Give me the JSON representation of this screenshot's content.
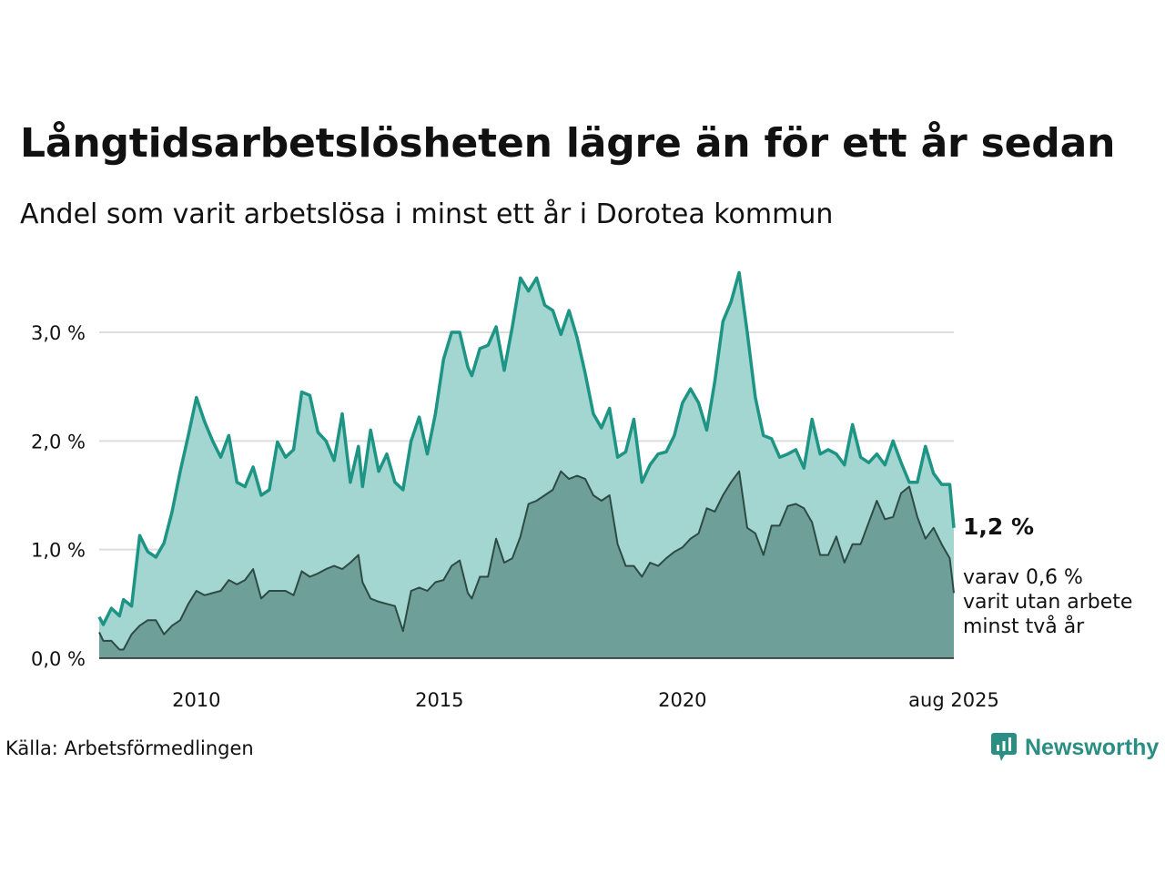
{
  "title": "Långtidsarbetslösheten lägre än för ett år sedan",
  "subtitle": "Andel som varit arbetslösa i minst ett år i Dorotea kommun",
  "source": "Källa: Arbetsförmedlingen",
  "brand": "Newsworthy",
  "colors": {
    "total_line": "#1e9485",
    "total_fill": "#a3d6d0",
    "sub_line": "#2e4a44",
    "sub_fill": "#6f9f99",
    "grid": "#dddddd"
  },
  "chart_data": {
    "type": "area",
    "title": "Långtidsarbetslösheten lägre än för ett år sedan",
    "subtitle": "Andel som varit arbetslösa i minst ett år i Dorotea kommun",
    "x_ticks": [
      "2010",
      "2015",
      "2020",
      "aug 2025"
    ],
    "y_ticks": [
      "0,0 %",
      "1,0 %",
      "2,0 %",
      "3,0 %"
    ],
    "ylim": [
      0,
      3.6
    ],
    "grid": true,
    "series": [
      {
        "end_label": "1,2 %",
        "points": [
          [
            "2008-01",
            0.38
          ],
          [
            "2008-02",
            0.31
          ],
          [
            "2008-04",
            0.46
          ],
          [
            "2008-06",
            0.39
          ],
          [
            "2008-07",
            0.54
          ],
          [
            "2008-09",
            0.48
          ],
          [
            "2008-11",
            1.13
          ],
          [
            "2009-01",
            0.98
          ],
          [
            "2009-03",
            0.93
          ],
          [
            "2009-05",
            1.06
          ],
          [
            "2009-07",
            1.35
          ],
          [
            "2009-09",
            1.72
          ],
          [
            "2009-11",
            2.05
          ],
          [
            "2010-01",
            2.4
          ],
          [
            "2010-03",
            2.18
          ],
          [
            "2010-05",
            2.0
          ],
          [
            "2010-07",
            1.85
          ],
          [
            "2010-09",
            2.05
          ],
          [
            "2010-11",
            1.62
          ],
          [
            "2011-01",
            1.58
          ],
          [
            "2011-03",
            1.76
          ],
          [
            "2011-05",
            1.5
          ],
          [
            "2011-07",
            1.55
          ],
          [
            "2011-09",
            1.99
          ],
          [
            "2011-11",
            1.85
          ],
          [
            "2012-01",
            1.92
          ],
          [
            "2012-03",
            2.45
          ],
          [
            "2012-05",
            2.42
          ],
          [
            "2012-07",
            2.08
          ],
          [
            "2012-09",
            2.0
          ],
          [
            "2012-11",
            1.82
          ],
          [
            "2013-01",
            2.25
          ],
          [
            "2013-03",
            1.62
          ],
          [
            "2013-05",
            1.95
          ],
          [
            "2013-06",
            1.58
          ],
          [
            "2013-08",
            2.1
          ],
          [
            "2013-10",
            1.72
          ],
          [
            "2013-12",
            1.88
          ],
          [
            "2014-02",
            1.62
          ],
          [
            "2014-04",
            1.55
          ],
          [
            "2014-06",
            2.0
          ],
          [
            "2014-08",
            2.22
          ],
          [
            "2014-10",
            1.88
          ],
          [
            "2014-12",
            2.25
          ],
          [
            "2015-02",
            2.75
          ],
          [
            "2015-04",
            3.0
          ],
          [
            "2015-06",
            3.0
          ],
          [
            "2015-08",
            2.68
          ],
          [
            "2015-09",
            2.6
          ],
          [
            "2015-11",
            2.85
          ],
          [
            "2016-01",
            2.88
          ],
          [
            "2016-03",
            3.05
          ],
          [
            "2016-05",
            2.65
          ],
          [
            "2016-07",
            3.05
          ],
          [
            "2016-09",
            3.5
          ],
          [
            "2016-11",
            3.38
          ],
          [
            "2017-01",
            3.5
          ],
          [
            "2017-03",
            3.25
          ],
          [
            "2017-05",
            3.2
          ],
          [
            "2017-07",
            2.98
          ],
          [
            "2017-09",
            3.2
          ],
          [
            "2017-11",
            2.95
          ],
          [
            "2018-01",
            2.62
          ],
          [
            "2018-03",
            2.25
          ],
          [
            "2018-05",
            2.12
          ],
          [
            "2018-07",
            2.3
          ],
          [
            "2018-09",
            1.85
          ],
          [
            "2018-11",
            1.9
          ],
          [
            "2019-01",
            2.2
          ],
          [
            "2019-03",
            1.62
          ],
          [
            "2019-05",
            1.78
          ],
          [
            "2019-07",
            1.88
          ],
          [
            "2019-09",
            1.9
          ],
          [
            "2019-11",
            2.05
          ],
          [
            "2020-01",
            2.35
          ],
          [
            "2020-03",
            2.48
          ],
          [
            "2020-05",
            2.35
          ],
          [
            "2020-07",
            2.1
          ],
          [
            "2020-09",
            2.55
          ],
          [
            "2020-11",
            3.1
          ],
          [
            "2021-01",
            3.28
          ],
          [
            "2021-03",
            3.55
          ],
          [
            "2021-05",
            3.0
          ],
          [
            "2021-07",
            2.4
          ],
          [
            "2021-09",
            2.05
          ],
          [
            "2021-11",
            2.02
          ],
          [
            "2022-01",
            1.85
          ],
          [
            "2022-03",
            1.88
          ],
          [
            "2022-05",
            1.92
          ],
          [
            "2022-07",
            1.75
          ],
          [
            "2022-09",
            2.2
          ],
          [
            "2022-11",
            1.88
          ],
          [
            "2023-01",
            1.92
          ],
          [
            "2023-03",
            1.88
          ],
          [
            "2023-05",
            1.78
          ],
          [
            "2023-07",
            2.15
          ],
          [
            "2023-09",
            1.85
          ],
          [
            "2023-11",
            1.8
          ],
          [
            "2024-01",
            1.88
          ],
          [
            "2024-03",
            1.78
          ],
          [
            "2024-05",
            2.0
          ],
          [
            "2024-07",
            1.8
          ],
          [
            "2024-09",
            1.62
          ],
          [
            "2024-11",
            1.62
          ],
          [
            "2025-01",
            1.95
          ],
          [
            "2025-03",
            1.7
          ],
          [
            "2025-05",
            1.6
          ],
          [
            "2025-07",
            1.6
          ],
          [
            "2025-08",
            1.2
          ]
        ]
      },
      {
        "end_label": [
          "varav 0,6 %",
          "varit utan arbete",
          "minst två år"
        ],
        "points": [
          [
            "2008-01",
            0.24
          ],
          [
            "2008-02",
            0.16
          ],
          [
            "2008-04",
            0.16
          ],
          [
            "2008-06",
            0.08
          ],
          [
            "2008-07",
            0.08
          ],
          [
            "2008-09",
            0.22
          ],
          [
            "2008-11",
            0.3
          ],
          [
            "2009-01",
            0.35
          ],
          [
            "2009-03",
            0.35
          ],
          [
            "2009-05",
            0.22
          ],
          [
            "2009-07",
            0.3
          ],
          [
            "2009-09",
            0.35
          ],
          [
            "2009-11",
            0.5
          ],
          [
            "2010-01",
            0.62
          ],
          [
            "2010-03",
            0.58
          ],
          [
            "2010-05",
            0.6
          ],
          [
            "2010-07",
            0.62
          ],
          [
            "2010-09",
            0.72
          ],
          [
            "2010-11",
            0.68
          ],
          [
            "2011-01",
            0.72
          ],
          [
            "2011-03",
            0.82
          ],
          [
            "2011-05",
            0.55
          ],
          [
            "2011-07",
            0.62
          ],
          [
            "2011-09",
            0.62
          ],
          [
            "2011-11",
            0.62
          ],
          [
            "2012-01",
            0.58
          ],
          [
            "2012-03",
            0.8
          ],
          [
            "2012-05",
            0.75
          ],
          [
            "2012-07",
            0.78
          ],
          [
            "2012-09",
            0.82
          ],
          [
            "2012-11",
            0.85
          ],
          [
            "2013-01",
            0.82
          ],
          [
            "2013-03",
            0.88
          ],
          [
            "2013-05",
            0.95
          ],
          [
            "2013-06",
            0.7
          ],
          [
            "2013-08",
            0.55
          ],
          [
            "2013-10",
            0.52
          ],
          [
            "2013-12",
            0.5
          ],
          [
            "2014-02",
            0.48
          ],
          [
            "2014-04",
            0.25
          ],
          [
            "2014-06",
            0.62
          ],
          [
            "2014-08",
            0.65
          ],
          [
            "2014-10",
            0.62
          ],
          [
            "2014-12",
            0.7
          ],
          [
            "2015-02",
            0.72
          ],
          [
            "2015-04",
            0.85
          ],
          [
            "2015-06",
            0.9
          ],
          [
            "2015-08",
            0.6
          ],
          [
            "2015-09",
            0.55
          ],
          [
            "2015-11",
            0.75
          ],
          [
            "2016-01",
            0.75
          ],
          [
            "2016-03",
            1.1
          ],
          [
            "2016-05",
            0.88
          ],
          [
            "2016-07",
            0.92
          ],
          [
            "2016-09",
            1.12
          ],
          [
            "2016-11",
            1.42
          ],
          [
            "2017-01",
            1.45
          ],
          [
            "2017-03",
            1.5
          ],
          [
            "2017-05",
            1.55
          ],
          [
            "2017-07",
            1.72
          ],
          [
            "2017-09",
            1.65
          ],
          [
            "2017-11",
            1.68
          ],
          [
            "2018-01",
            1.65
          ],
          [
            "2018-03",
            1.5
          ],
          [
            "2018-05",
            1.45
          ],
          [
            "2018-07",
            1.5
          ],
          [
            "2018-09",
            1.05
          ],
          [
            "2018-11",
            0.85
          ],
          [
            "2019-01",
            0.85
          ],
          [
            "2019-03",
            0.75
          ],
          [
            "2019-05",
            0.88
          ],
          [
            "2019-07",
            0.85
          ],
          [
            "2019-09",
            0.92
          ],
          [
            "2019-11",
            0.98
          ],
          [
            "2020-01",
            1.02
          ],
          [
            "2020-03",
            1.1
          ],
          [
            "2020-05",
            1.15
          ],
          [
            "2020-07",
            1.38
          ],
          [
            "2020-09",
            1.35
          ],
          [
            "2020-11",
            1.5
          ],
          [
            "2021-01",
            1.62
          ],
          [
            "2021-03",
            1.72
          ],
          [
            "2021-05",
            1.2
          ],
          [
            "2021-07",
            1.15
          ],
          [
            "2021-09",
            0.95
          ],
          [
            "2021-11",
            1.22
          ],
          [
            "2022-01",
            1.22
          ],
          [
            "2022-03",
            1.4
          ],
          [
            "2022-05",
            1.42
          ],
          [
            "2022-07",
            1.38
          ],
          [
            "2022-09",
            1.25
          ],
          [
            "2022-11",
            0.95
          ],
          [
            "2023-01",
            0.95
          ],
          [
            "2023-03",
            1.12
          ],
          [
            "2023-05",
            0.88
          ],
          [
            "2023-07",
            1.05
          ],
          [
            "2023-09",
            1.05
          ],
          [
            "2023-11",
            1.25
          ],
          [
            "2024-01",
            1.45
          ],
          [
            "2024-03",
            1.28
          ],
          [
            "2024-05",
            1.3
          ],
          [
            "2024-07",
            1.52
          ],
          [
            "2024-09",
            1.58
          ],
          [
            "2024-11",
            1.3
          ],
          [
            "2025-01",
            1.1
          ],
          [
            "2025-03",
            1.2
          ],
          [
            "2025-05",
            1.05
          ],
          [
            "2025-07",
            0.92
          ],
          [
            "2025-08",
            0.6
          ]
        ]
      }
    ]
  }
}
